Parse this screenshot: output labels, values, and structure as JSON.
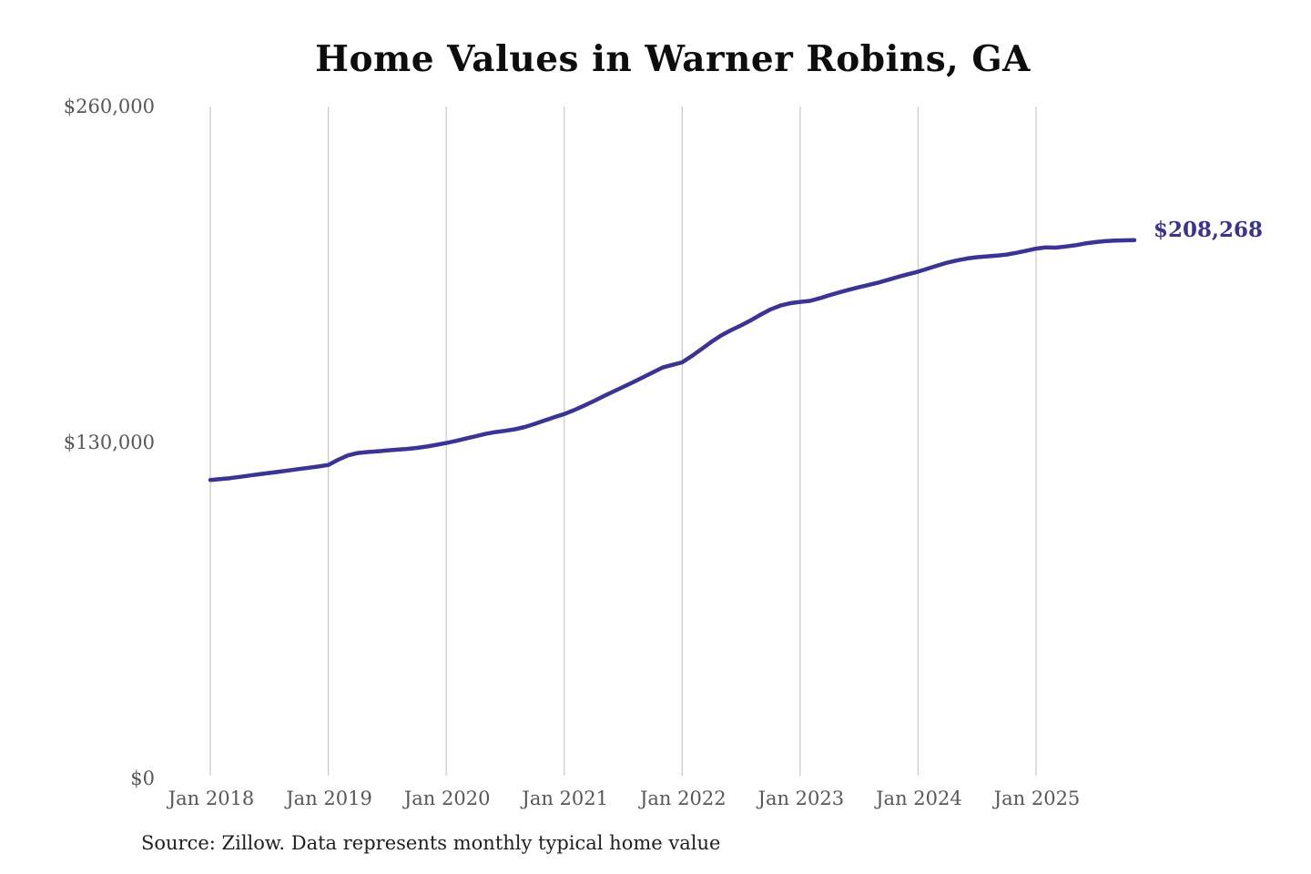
{
  "chart_data": {
    "type": "line",
    "title": "Home Values in Warner Robins, GA",
    "source_note": "Source: Zillow. Data represents monthly typical home value",
    "end_label": "$208,268",
    "end_value": 208268,
    "x_start_month": "2018-01",
    "frequency": "monthly",
    "legend": "none",
    "grid": "vertical-only",
    "series": [
      {
        "name": "Typical home value ($)",
        "values": [
          115500,
          115800,
          116200,
          116700,
          117200,
          117700,
          118200,
          118700,
          119200,
          119700,
          120200,
          120700,
          121300,
          123300,
          125000,
          125900,
          126300,
          126600,
          126900,
          127200,
          127500,
          127900,
          128400,
          129100,
          129800,
          130600,
          131500,
          132400,
          133300,
          134000,
          134500,
          135100,
          136000,
          137200,
          138500,
          139800,
          141000,
          142500,
          144200,
          146000,
          147900,
          149700,
          151500,
          153300,
          155200,
          157100,
          159000,
          160000,
          161000,
          163500,
          166200,
          169000,
          171500,
          173500,
          175300,
          177300,
          179500,
          181500,
          183000,
          183900,
          184400,
          184800,
          185800,
          187000,
          188100,
          189100,
          190100,
          191000,
          191900,
          193000,
          194100,
          195100,
          196100,
          197300,
          198500,
          199600,
          200500,
          201200,
          201700,
          202000,
          202300,
          202700,
          203400,
          204200,
          205000,
          205500,
          205400,
          205800,
          206300,
          207000,
          207500,
          207900,
          208100,
          208200,
          208268
        ]
      }
    ],
    "x_axis": {
      "tick_labels": [
        "Jan 2018",
        "Jan 2019",
        "Jan 2020",
        "Jan 2021",
        "Jan 2022",
        "Jan 2023",
        "Jan 2024",
        "Jan 2025"
      ],
      "tick_month_indices": [
        0,
        12,
        24,
        36,
        48,
        60,
        72,
        84
      ]
    },
    "y_axis": {
      "min": 0,
      "max": 260000,
      "ticks": [
        {
          "label": "$260,000",
          "value": 260000
        },
        {
          "label": "$130,000",
          "value": 130000
        },
        {
          "label": "$0",
          "value": 0
        }
      ]
    },
    "colors": {
      "line": "#3c3494",
      "end_label": "#3a3291",
      "grid": "#c8c8c8",
      "axis_text": "#575757",
      "title_text": "#0d0d0d",
      "source_text": "#202020",
      "background": "#ffffff"
    }
  }
}
